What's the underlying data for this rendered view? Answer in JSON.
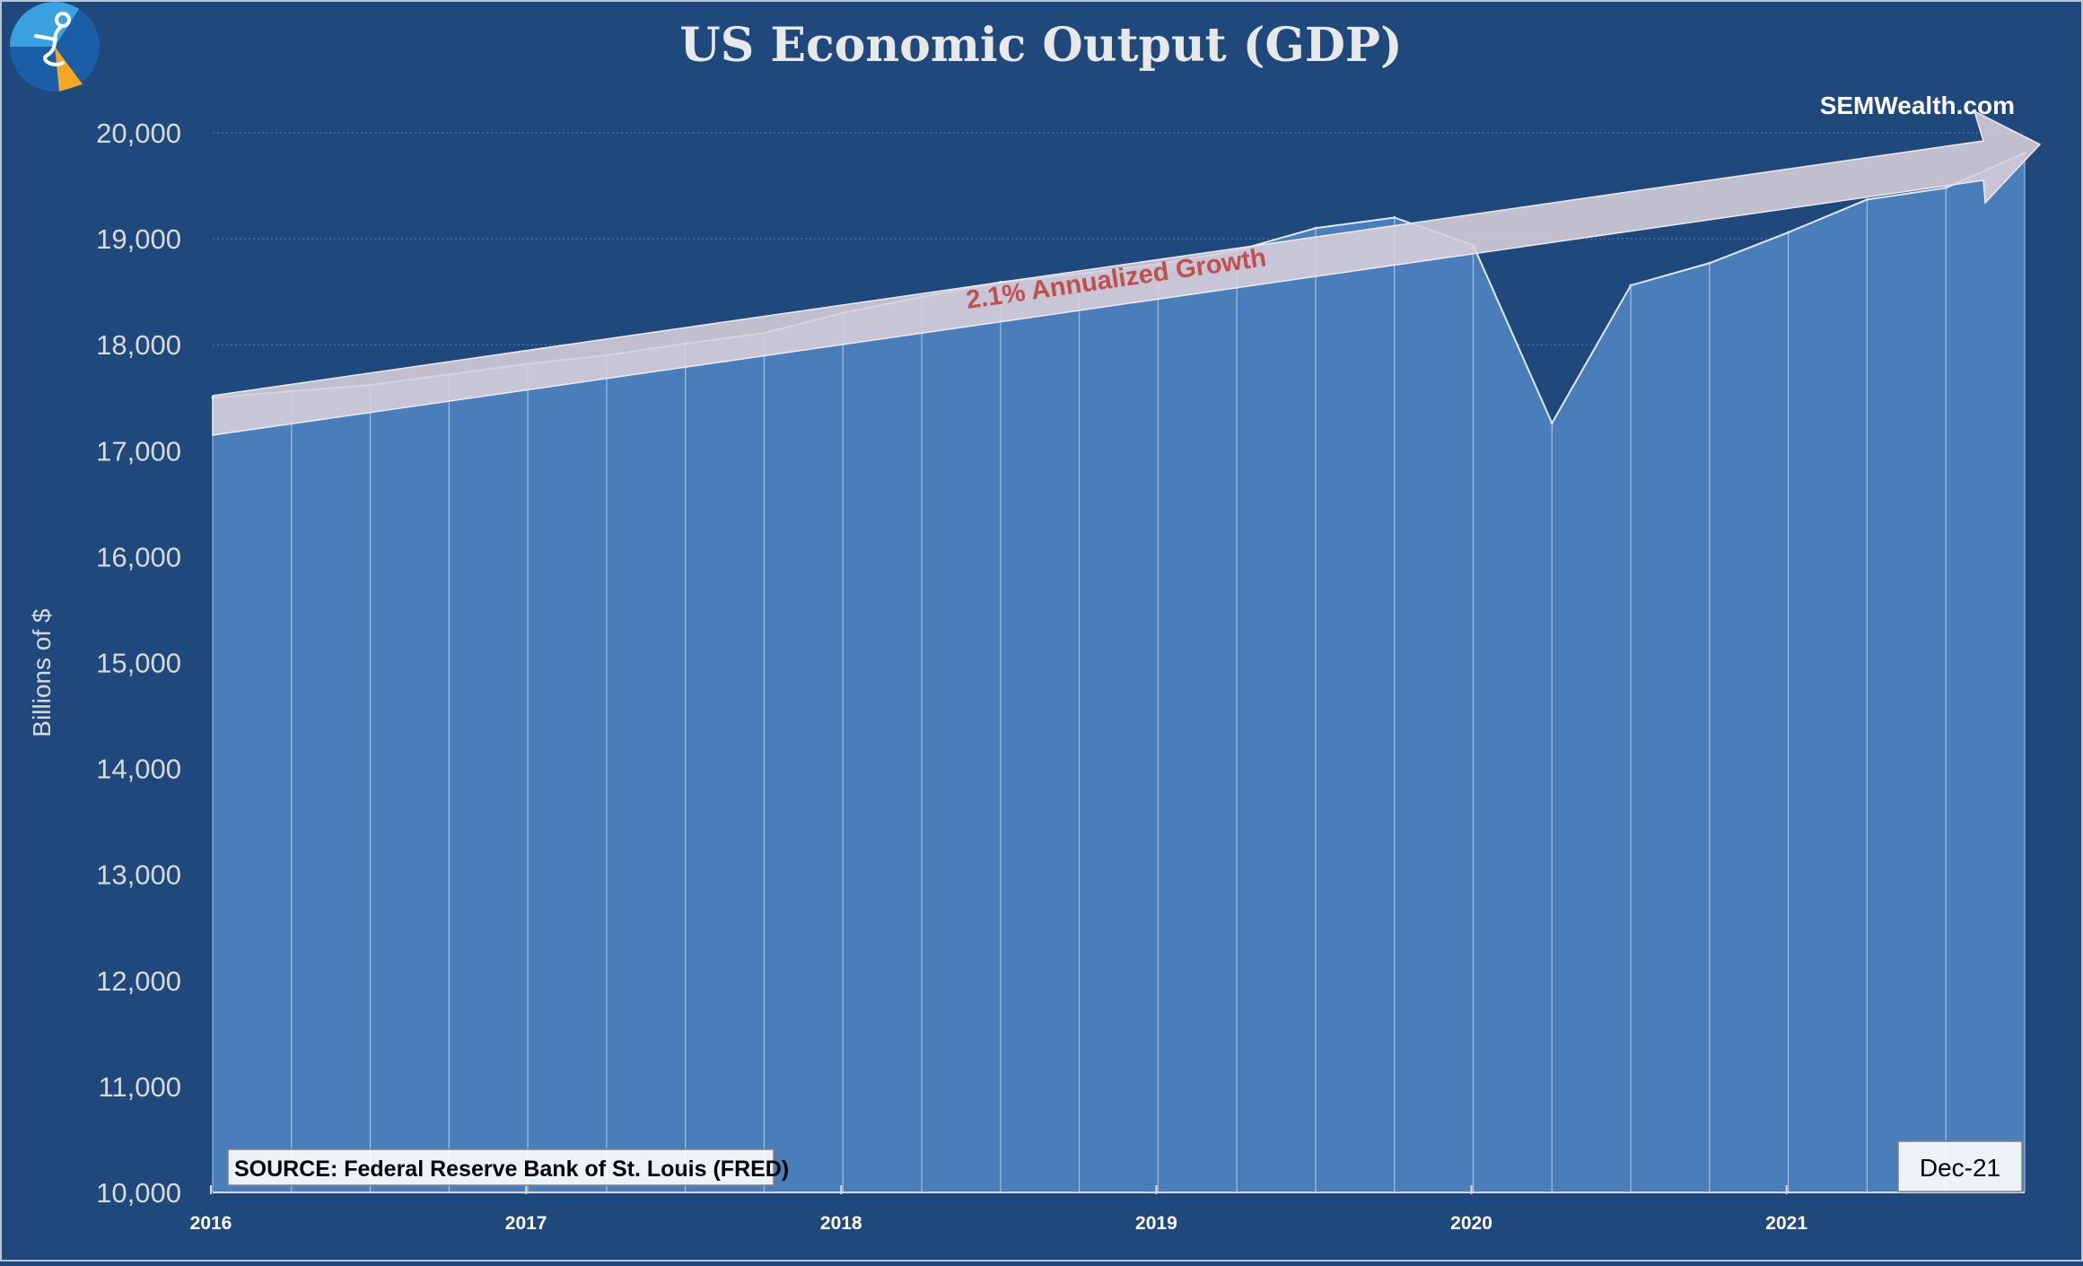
{
  "chart_data": {
    "type": "area",
    "title": "US Economic Output (GDP)",
    "xlabel": "",
    "ylabel": "Billions of $",
    "ylim": [
      10000,
      20000
    ],
    "yticks": [
      "10,000",
      "11,000",
      "12,000",
      "13,000",
      "14,000",
      "15,000",
      "16,000",
      "17,000",
      "18,000",
      "19,000",
      "20,000"
    ],
    "year_labels": [
      "2016",
      "2017",
      "2018",
      "2019",
      "2020",
      "2021"
    ],
    "series": [
      {
        "name": "GDP (Billions of $)",
        "x": [
          "2016-Q1",
          "2016-Q2",
          "2016-Q3",
          "2016-Q4",
          "2017-Q1",
          "2017-Q2",
          "2017-Q3",
          "2017-Q4",
          "2018-Q1",
          "2018-Q2",
          "2018-Q3",
          "2018-Q4",
          "2019-Q1",
          "2019-Q2",
          "2019-Q3",
          "2019-Q4",
          "2020-Q1",
          "2020-Q2",
          "2020-Q3",
          "2020-Q4",
          "2021-Q1",
          "2021-Q2",
          "2021-Q3",
          "2021-Q4"
        ],
        "values": [
          17500,
          17560,
          17620,
          17720,
          17820,
          17900,
          18010,
          18110,
          18300,
          18450,
          18590,
          18670,
          18760,
          18890,
          19100,
          19200,
          18940,
          17260,
          18560,
          18770,
          19060,
          19370,
          19480,
          19810
        ]
      }
    ],
    "annotations": {
      "growth_label": "2.1% Annualized Growth",
      "source": "SOURCE: Federal Reserve Bank of St. Louis (FRED)",
      "date_badge": "Dec-21",
      "brand": "SEMWealth.com"
    },
    "grid": true,
    "colors": {
      "background": "#1f497d",
      "area_fill": "#4a7ebb",
      "area_line": "#dfe8f5",
      "arrow_fill": "#d8cfd9",
      "growth_text": "#c0504d",
      "axis_text": "#d9d9d9",
      "logo_light": "#3aa0e0",
      "logo_dark": "#1a5ea8",
      "logo_accent": "#f5a623"
    }
  }
}
